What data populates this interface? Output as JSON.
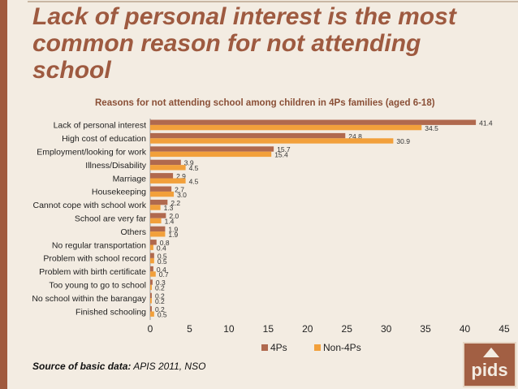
{
  "slide": {
    "title": "Lack of personal interest is the most common reason for not attending school",
    "source_label": "Source of basic data:",
    "source_text": " APIS 2011, NSO",
    "logo_text": "pids"
  },
  "chart_data": {
    "type": "bar",
    "orientation": "horizontal",
    "title": "Reasons for not attending school among children in 4Ps families (aged 6-18)",
    "categories": [
      "Lack of personal interest",
      "High cost of education",
      "Employment/looking for work",
      "Illness/Disability",
      "Marriage",
      "Housekeeping",
      "Cannot cope with school work",
      "School are very far",
      "Others",
      "No regular transportation",
      "Problem with school record",
      "Problem with birth certificate",
      "Too young to go to school",
      "No school within the barangay",
      "Finished schooling"
    ],
    "series": [
      {
        "name": "4Ps",
        "color": "#b0694e",
        "values": [
          41.4,
          24.8,
          15.7,
          3.9,
          2.9,
          2.7,
          2.2,
          2.0,
          1.9,
          0.8,
          0.5,
          0.4,
          0.3,
          0.2,
          0.2
        ]
      },
      {
        "name": "Non-4Ps",
        "color": "#f2a03b",
        "values": [
          34.5,
          30.9,
          15.4,
          4.5,
          4.5,
          3.0,
          1.3,
          1.4,
          1.9,
          0.4,
          0.5,
          0.7,
          0.2,
          0.2,
          0.5
        ]
      }
    ],
    "xlim": [
      0,
      45
    ],
    "xticks": [
      "0",
      "5",
      "10",
      "15",
      "20",
      "25",
      "30",
      "35",
      "40",
      "45"
    ],
    "legend_position": "bottom"
  }
}
